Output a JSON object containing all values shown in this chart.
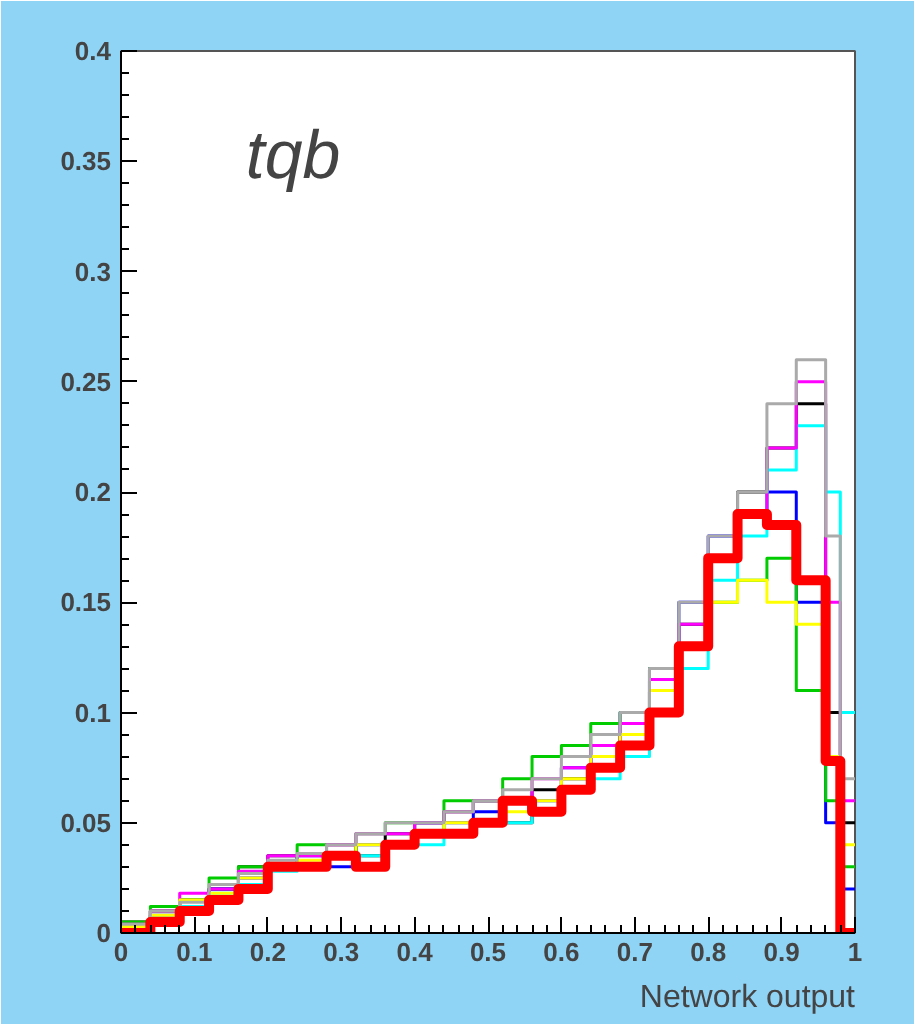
{
  "chart_data": {
    "type": "histogram",
    "title": "tqb",
    "xlabel": "Network output",
    "bins": [
      0,
      0.04,
      0.08,
      0.12,
      0.16,
      0.2,
      0.24,
      0.28,
      0.32,
      0.36,
      0.4,
      0.44,
      0.48,
      0.52,
      0.56,
      0.6,
      0.64,
      0.68,
      0.72,
      0.76,
      0.8,
      0.84,
      0.88,
      0.92,
      0.96,
      0.98,
      1.0
    ],
    "series": [
      {
        "color": "#000000",
        "values": [
          0.005,
          0.01,
          0.015,
          0.02,
          0.03,
          0.035,
          0.03,
          0.04,
          0.035,
          0.045,
          0.05,
          0.055,
          0.06,
          0.05,
          0.065,
          0.07,
          0.08,
          0.09,
          0.11,
          0.14,
          0.17,
          0.2,
          0.22,
          0.24,
          0.1,
          0.05
        ]
      },
      {
        "color": "#0000ff",
        "values": [
          0.003,
          0.008,
          0.012,
          0.02,
          0.025,
          0.03,
          0.035,
          0.03,
          0.04,
          0.04,
          0.05,
          0.05,
          0.055,
          0.06,
          0.06,
          0.075,
          0.085,
          0.1,
          0.12,
          0.15,
          0.18,
          0.19,
          0.2,
          0.15,
          0.05,
          0.02
        ]
      },
      {
        "color": "#00cc00",
        "values": [
          0.005,
          0.012,
          0.015,
          0.025,
          0.03,
          0.03,
          0.04,
          0.035,
          0.045,
          0.05,
          0.045,
          0.06,
          0.06,
          0.07,
          0.08,
          0.085,
          0.095,
          0.1,
          0.12,
          0.13,
          0.15,
          0.16,
          0.17,
          0.11,
          0.06,
          0.03
        ]
      },
      {
        "color": "#00ffff",
        "values": [
          0.002,
          0.006,
          0.012,
          0.018,
          0.022,
          0.028,
          0.03,
          0.035,
          0.035,
          0.04,
          0.04,
          0.045,
          0.05,
          0.05,
          0.055,
          0.065,
          0.07,
          0.08,
          0.1,
          0.12,
          0.16,
          0.18,
          0.21,
          0.23,
          0.2,
          0.1
        ]
      },
      {
        "color": "#ff00ff",
        "values": [
          0.004,
          0.01,
          0.018,
          0.02,
          0.028,
          0.035,
          0.035,
          0.04,
          0.045,
          0.045,
          0.05,
          0.055,
          0.06,
          0.06,
          0.07,
          0.075,
          0.085,
          0.095,
          0.115,
          0.14,
          0.17,
          0.19,
          0.22,
          0.25,
          0.15,
          0.06
        ]
      },
      {
        "color": "#ffff00",
        "values": [
          0.003,
          0.008,
          0.015,
          0.018,
          0.025,
          0.03,
          0.033,
          0.035,
          0.04,
          0.04,
          0.045,
          0.05,
          0.05,
          0.055,
          0.06,
          0.07,
          0.08,
          0.09,
          0.11,
          0.13,
          0.15,
          0.16,
          0.15,
          0.14,
          0.08,
          0.04
        ]
      },
      {
        "color": "#aaaaaa",
        "values": [
          0.004,
          0.01,
          0.014,
          0.022,
          0.027,
          0.033,
          0.036,
          0.04,
          0.045,
          0.05,
          0.05,
          0.055,
          0.06,
          0.065,
          0.07,
          0.08,
          0.09,
          0.1,
          0.12,
          0.15,
          0.18,
          0.2,
          0.24,
          0.26,
          0.18,
          0.07
        ]
      },
      {
        "color": "#ff0000",
        "values": [
          0.0,
          0.005,
          0.01,
          0.015,
          0.02,
          0.03,
          0.03,
          0.035,
          0.03,
          0.04,
          0.045,
          0.045,
          0.05,
          0.06,
          0.055,
          0.065,
          0.075,
          0.085,
          0.1,
          0.13,
          0.17,
          0.19,
          0.185,
          0.16,
          0.078,
          0.0
        ]
      }
    ],
    "xlim": [
      0,
      1
    ],
    "ylim": [
      0,
      0.4
    ],
    "xticks": [
      0,
      0.1,
      0.2,
      0.3,
      0.4,
      0.5,
      0.6,
      0.7,
      0.8,
      0.9,
      1
    ],
    "yticks": [
      0,
      0.05,
      0.1,
      0.15,
      0.2,
      0.25,
      0.3,
      0.35,
      0.4
    ],
    "grid": false
  }
}
